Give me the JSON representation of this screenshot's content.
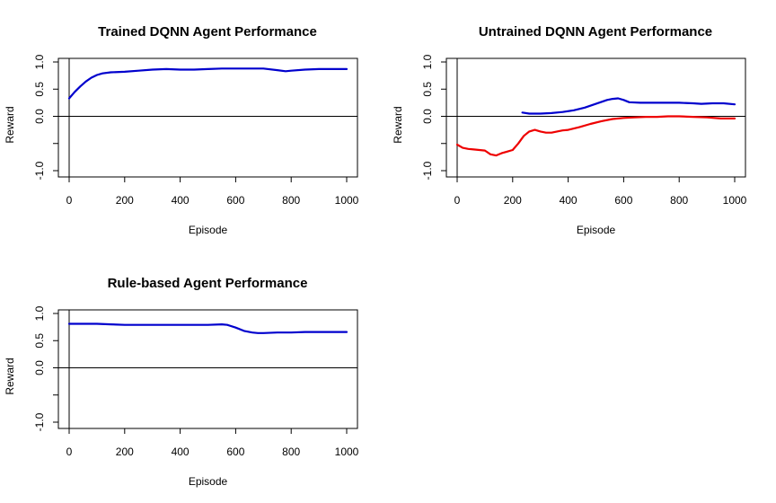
{
  "chart_data": [
    {
      "type": "line",
      "title": "Trained DQNN Agent Performance",
      "xlabel": "Episode",
      "ylabel": "Reward",
      "xlim": [
        0,
        1000
      ],
      "ylim": [
        -1.0,
        1.0
      ],
      "xticks": [
        "0",
        "200",
        "400",
        "600",
        "800",
        "1000"
      ],
      "yticks": [
        "-1.0",
        "0.0",
        "0.5",
        "1.0"
      ],
      "hline": 0,
      "vline": 0,
      "series": [
        {
          "color": "#0000CD",
          "x": [
            0,
            20,
            40,
            60,
            80,
            100,
            120,
            150,
            200,
            250,
            300,
            350,
            400,
            450,
            500,
            550,
            600,
            650,
            700,
            750,
            780,
            800,
            850,
            900,
            950,
            1000
          ],
          "y": [
            0.33,
            0.45,
            0.55,
            0.64,
            0.71,
            0.76,
            0.79,
            0.81,
            0.82,
            0.84,
            0.86,
            0.87,
            0.86,
            0.86,
            0.87,
            0.88,
            0.88,
            0.88,
            0.88,
            0.85,
            0.83,
            0.84,
            0.86,
            0.87,
            0.87,
            0.87
          ]
        }
      ]
    },
    {
      "type": "line",
      "title": "Untrained DQNN Agent Performance",
      "xlabel": "Episode",
      "ylabel": "Reward",
      "xlim": [
        0,
        1000
      ],
      "ylim": [
        -1.0,
        1.0
      ],
      "xticks": [
        "0",
        "200",
        "400",
        "600",
        "800",
        "1000"
      ],
      "yticks": [
        "-1.0",
        "0.0",
        "0.5",
        "1.0"
      ],
      "hline": 0,
      "vline": 0,
      "series": [
        {
          "color": "#0000CD",
          "x": [
            235,
            260,
            300,
            340,
            380,
            420,
            460,
            500,
            540,
            560,
            580,
            600,
            620,
            660,
            700,
            760,
            800,
            850,
            880,
            920,
            960,
            1000
          ],
          "y": [
            0.07,
            0.05,
            0.05,
            0.06,
            0.08,
            0.11,
            0.16,
            0.23,
            0.3,
            0.32,
            0.33,
            0.3,
            0.26,
            0.25,
            0.25,
            0.25,
            0.25,
            0.24,
            0.23,
            0.24,
            0.24,
            0.22
          ]
        },
        {
          "color": "#EE0000",
          "x": [
            0,
            20,
            40,
            60,
            80,
            100,
            120,
            140,
            160,
            180,
            200,
            220,
            240,
            260,
            280,
            300,
            320,
            340,
            360,
            380,
            400,
            440,
            480,
            520,
            560,
            600,
            640,
            680,
            720,
            760,
            800,
            850,
            900,
            950,
            1000
          ],
          "y": [
            -0.52,
            -0.58,
            -0.6,
            -0.61,
            -0.62,
            -0.63,
            -0.7,
            -0.72,
            -0.68,
            -0.65,
            -0.62,
            -0.5,
            -0.36,
            -0.28,
            -0.25,
            -0.28,
            -0.3,
            -0.3,
            -0.28,
            -0.26,
            -0.25,
            -0.2,
            -0.14,
            -0.09,
            -0.05,
            -0.03,
            -0.02,
            -0.01,
            -0.01,
            0.0,
            0.0,
            -0.01,
            -0.02,
            -0.04,
            -0.04
          ]
        }
      ]
    },
    {
      "type": "line",
      "title": "Rule-based Agent Performance",
      "xlabel": "Episode",
      "ylabel": "Reward",
      "xlim": [
        0,
        1000
      ],
      "ylim": [
        -1.0,
        1.0
      ],
      "xticks": [
        "0",
        "200",
        "400",
        "600",
        "800",
        "1000"
      ],
      "yticks": [
        "-1.0",
        "0.0",
        "0.5",
        "1.0"
      ],
      "hline": 0,
      "vline": 0,
      "series": [
        {
          "color": "#0000CD",
          "x": [
            0,
            50,
            100,
            150,
            200,
            300,
            400,
            500,
            550,
            570,
            600,
            630,
            660,
            680,
            700,
            750,
            800,
            850,
            900,
            950,
            1000
          ],
          "y": [
            0.81,
            0.81,
            0.81,
            0.8,
            0.79,
            0.79,
            0.79,
            0.79,
            0.8,
            0.79,
            0.74,
            0.68,
            0.65,
            0.64,
            0.64,
            0.65,
            0.65,
            0.66,
            0.66,
            0.66,
            0.66
          ]
        }
      ]
    }
  ]
}
